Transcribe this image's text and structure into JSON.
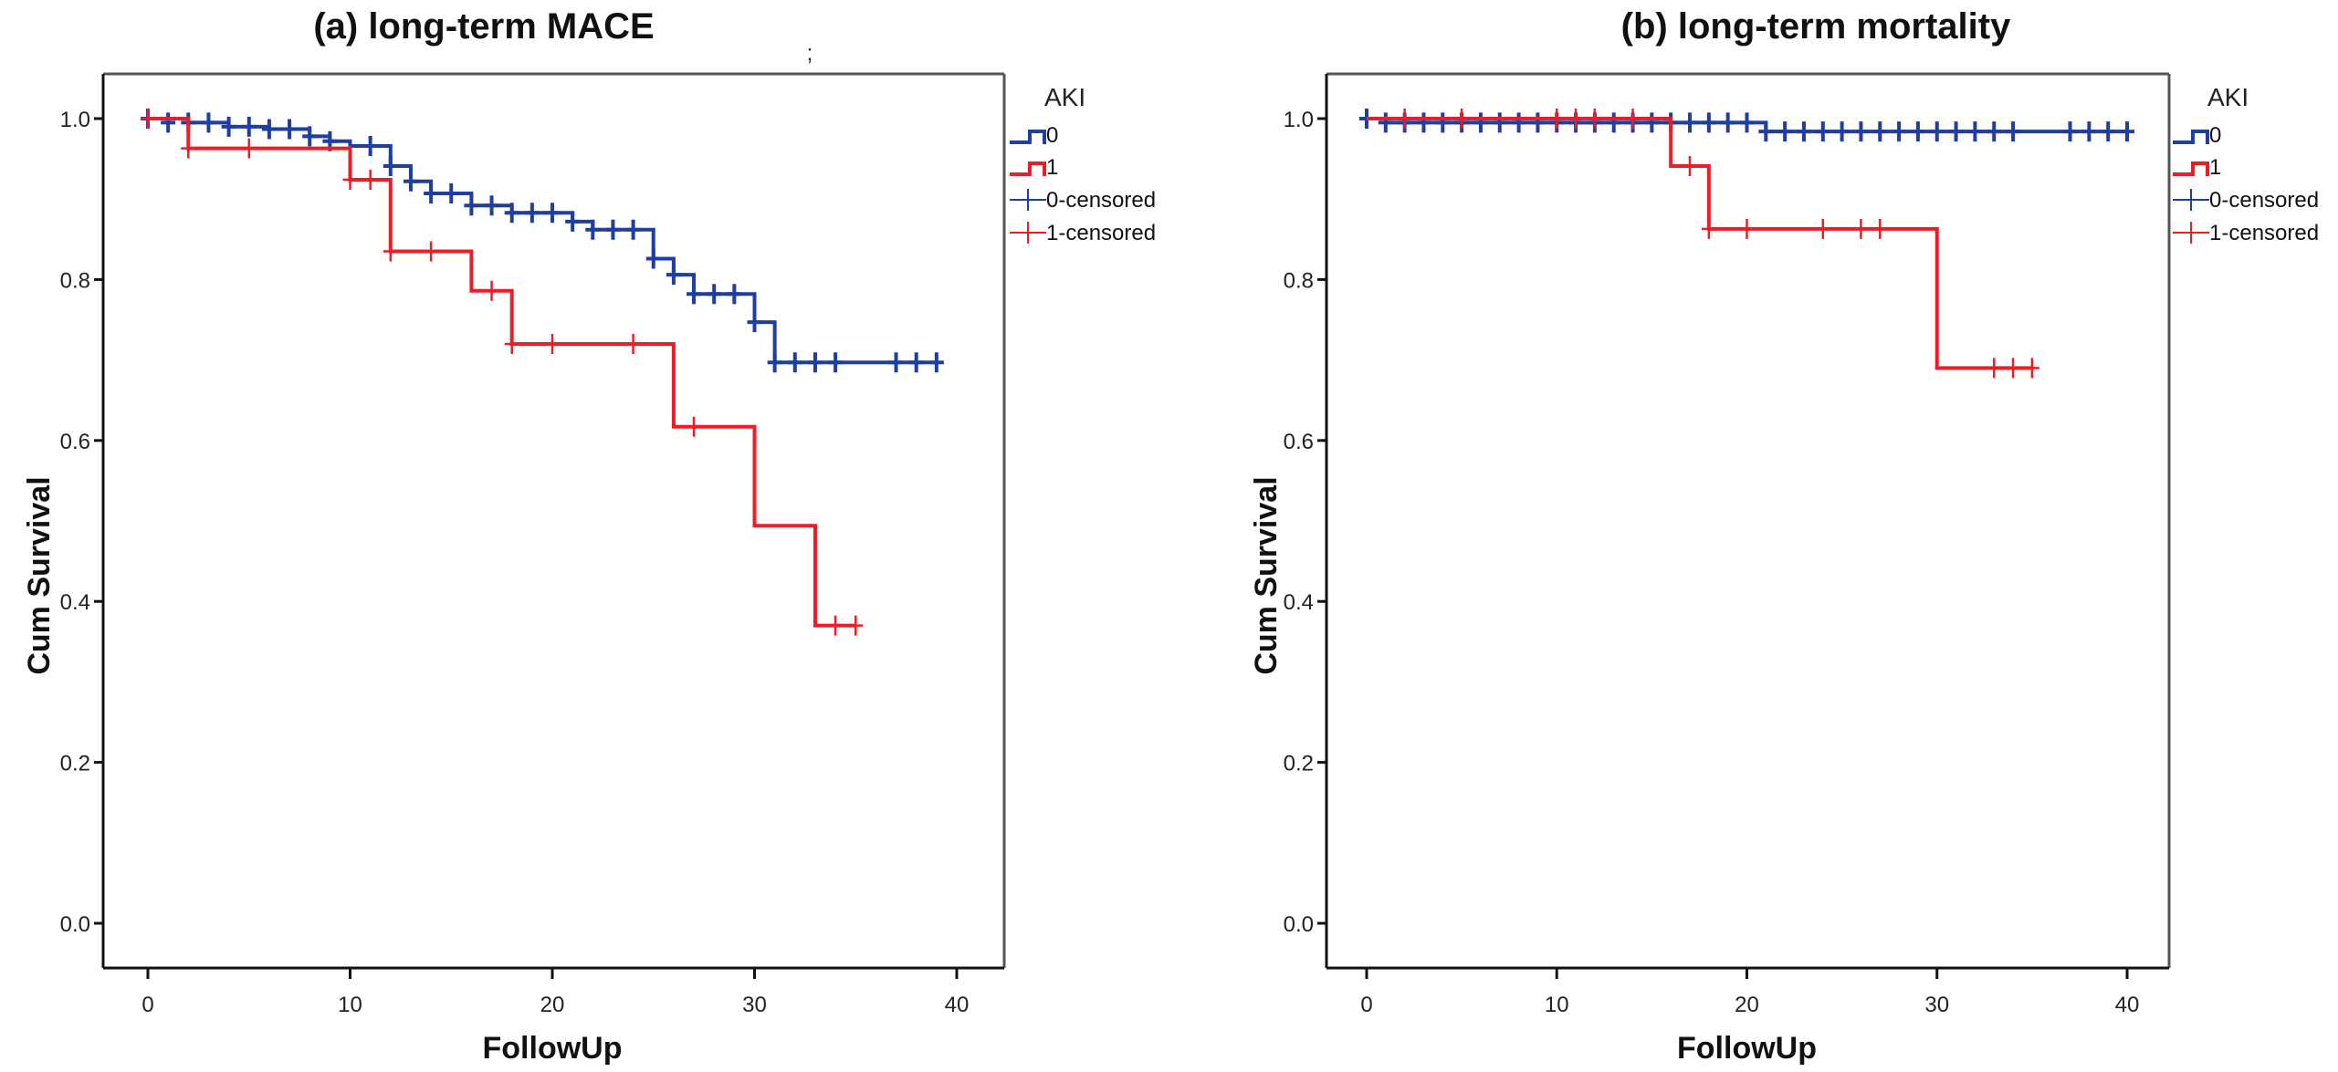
{
  "chart_data": [
    {
      "type": "line",
      "subtype": "kaplan-meier step",
      "title": "(a)  long-term  MACE",
      "xlabel": "FollowUp",
      "ylabel": "Cum Survival",
      "xlim": [
        0,
        40
      ],
      "ylim": [
        0.0,
        1.0
      ],
      "xticks": [
        "0",
        "10",
        "20",
        "30",
        "40"
      ],
      "yticks": [
        "0.0",
        "0.2",
        "0.4",
        "0.6",
        "0.8",
        "1.0"
      ],
      "grid": false,
      "legend": {
        "title": "AKI",
        "placement": "right-top",
        "entries": [
          "0",
          "1",
          "0-censored",
          "1-censored"
        ]
      },
      "series": [
        {
          "name": "0",
          "color": "#1f3fa0",
          "steps": [
            [
              0,
              1.0
            ],
            [
              2,
              0.995
            ],
            [
              4,
              0.99
            ],
            [
              6,
              0.987
            ],
            [
              8,
              0.978
            ],
            [
              9,
              0.972
            ],
            [
              10,
              0.966
            ],
            [
              12,
              0.941
            ],
            [
              13,
              0.922
            ],
            [
              14,
              0.907
            ],
            [
              16,
              0.892
            ],
            [
              18,
              0.883
            ],
            [
              21,
              0.872
            ],
            [
              22,
              0.862
            ],
            [
              25,
              0.826
            ],
            [
              26,
              0.806
            ],
            [
              27,
              0.782
            ],
            [
              30,
              0.747
            ],
            [
              31,
              0.697
            ]
          ],
          "end_x": 39,
          "censored": [
            [
              0,
              1.0
            ],
            [
              1,
              0.995
            ],
            [
              2,
              0.995
            ],
            [
              3,
              0.995
            ],
            [
              4,
              0.99
            ],
            [
              5,
              0.99
            ],
            [
              6,
              0.987
            ],
            [
              7,
              0.987
            ],
            [
              8,
              0.978
            ],
            [
              9,
              0.972
            ],
            [
              11,
              0.966
            ],
            [
              12,
              0.941
            ],
            [
              13,
              0.922
            ],
            [
              14,
              0.907
            ],
            [
              15,
              0.907
            ],
            [
              16,
              0.892
            ],
            [
              17,
              0.892
            ],
            [
              18,
              0.883
            ],
            [
              19,
              0.883
            ],
            [
              20,
              0.883
            ],
            [
              21,
              0.872
            ],
            [
              22,
              0.862
            ],
            [
              23,
              0.862
            ],
            [
              24,
              0.862
            ],
            [
              25,
              0.826
            ],
            [
              26,
              0.806
            ],
            [
              27,
              0.782
            ],
            [
              28,
              0.782
            ],
            [
              29,
              0.782
            ],
            [
              30,
              0.747
            ],
            [
              31,
              0.697
            ],
            [
              32,
              0.697
            ],
            [
              33,
              0.697
            ],
            [
              34,
              0.697
            ],
            [
              37,
              0.697
            ],
            [
              38,
              0.697
            ],
            [
              39,
              0.697
            ]
          ]
        },
        {
          "name": "1",
          "color": "#ee1c25",
          "steps": [
            [
              0,
              1.0
            ],
            [
              2,
              0.963
            ],
            [
              10,
              0.924
            ],
            [
              12,
              0.835
            ],
            [
              16,
              0.786
            ],
            [
              18,
              0.72
            ],
            [
              26,
              0.617
            ],
            [
              30,
              0.494
            ],
            [
              33,
              0.37
            ]
          ],
          "end_x": 35,
          "censored": [
            [
              0,
              1.0
            ],
            [
              2,
              0.963
            ],
            [
              5,
              0.963
            ],
            [
              10,
              0.924
            ],
            [
              11,
              0.924
            ],
            [
              12,
              0.835
            ],
            [
              14,
              0.835
            ],
            [
              17,
              0.786
            ],
            [
              18,
              0.72
            ],
            [
              20,
              0.72
            ],
            [
              24,
              0.72
            ],
            [
              27,
              0.617
            ],
            [
              34,
              0.37
            ],
            [
              35,
              0.37
            ]
          ]
        }
      ]
    },
    {
      "type": "line",
      "subtype": "kaplan-meier step",
      "title": "(b)  long-term  mortality",
      "xlabel": "FollowUp",
      "ylabel": "Cum Survival",
      "xlim": [
        0,
        40
      ],
      "ylim": [
        0.0,
        1.0
      ],
      "xticks": [
        "0",
        "10",
        "20",
        "30",
        "40"
      ],
      "yticks": [
        "0.0",
        "0.2",
        "0.4",
        "0.6",
        "0.8",
        "1.0"
      ],
      "grid": false,
      "legend": {
        "title": "AKI",
        "placement": "right-top",
        "entries": [
          "0",
          "1",
          "0-censored",
          "1-censored"
        ]
      },
      "series": [
        {
          "name": "0",
          "color": "#1f3fa0",
          "steps": [
            [
              0,
              1.0
            ],
            [
              1,
              0.995
            ],
            [
              21,
              0.984
            ]
          ],
          "end_x": 40,
          "censored": [
            [
              0,
              1.0
            ],
            [
              1,
              0.995
            ],
            [
              2,
              0.995
            ],
            [
              3,
              0.995
            ],
            [
              4,
              0.995
            ],
            [
              5,
              0.995
            ],
            [
              6,
              0.995
            ],
            [
              7,
              0.995
            ],
            [
              8,
              0.995
            ],
            [
              9,
              0.995
            ],
            [
              10,
              0.995
            ],
            [
              11,
              0.995
            ],
            [
              12,
              0.995
            ],
            [
              13,
              0.995
            ],
            [
              14,
              0.995
            ],
            [
              15,
              0.995
            ],
            [
              16,
              0.995
            ],
            [
              17,
              0.995
            ],
            [
              18,
              0.995
            ],
            [
              19,
              0.995
            ],
            [
              20,
              0.995
            ],
            [
              21,
              0.984
            ],
            [
              22,
              0.984
            ],
            [
              23,
              0.984
            ],
            [
              24,
              0.984
            ],
            [
              25,
              0.984
            ],
            [
              26,
              0.984
            ],
            [
              27,
              0.984
            ],
            [
              28,
              0.984
            ],
            [
              29,
              0.984
            ],
            [
              30,
              0.984
            ],
            [
              31,
              0.984
            ],
            [
              32,
              0.984
            ],
            [
              33,
              0.984
            ],
            [
              34,
              0.984
            ],
            [
              37,
              0.984
            ],
            [
              38,
              0.984
            ],
            [
              39,
              0.984
            ],
            [
              40,
              0.984
            ]
          ]
        },
        {
          "name": "1",
          "color": "#ee1c25",
          "steps": [
            [
              0,
              1.0
            ],
            [
              16,
              0.941
            ],
            [
              18,
              0.863
            ],
            [
              30,
              0.69
            ]
          ],
          "end_x": 35,
          "censored": [
            [
              2,
              1.0
            ],
            [
              5,
              1.0
            ],
            [
              10,
              1.0
            ],
            [
              11,
              1.0
            ],
            [
              12,
              1.0
            ],
            [
              14,
              1.0
            ],
            [
              17,
              0.941
            ],
            [
              18,
              0.863
            ],
            [
              20,
              0.863
            ],
            [
              24,
              0.863
            ],
            [
              26,
              0.863
            ],
            [
              27,
              0.863
            ],
            [
              33,
              0.69
            ],
            [
              34,
              0.69
            ],
            [
              35,
              0.69
            ]
          ]
        }
      ]
    }
  ],
  "stray_mark": ";"
}
